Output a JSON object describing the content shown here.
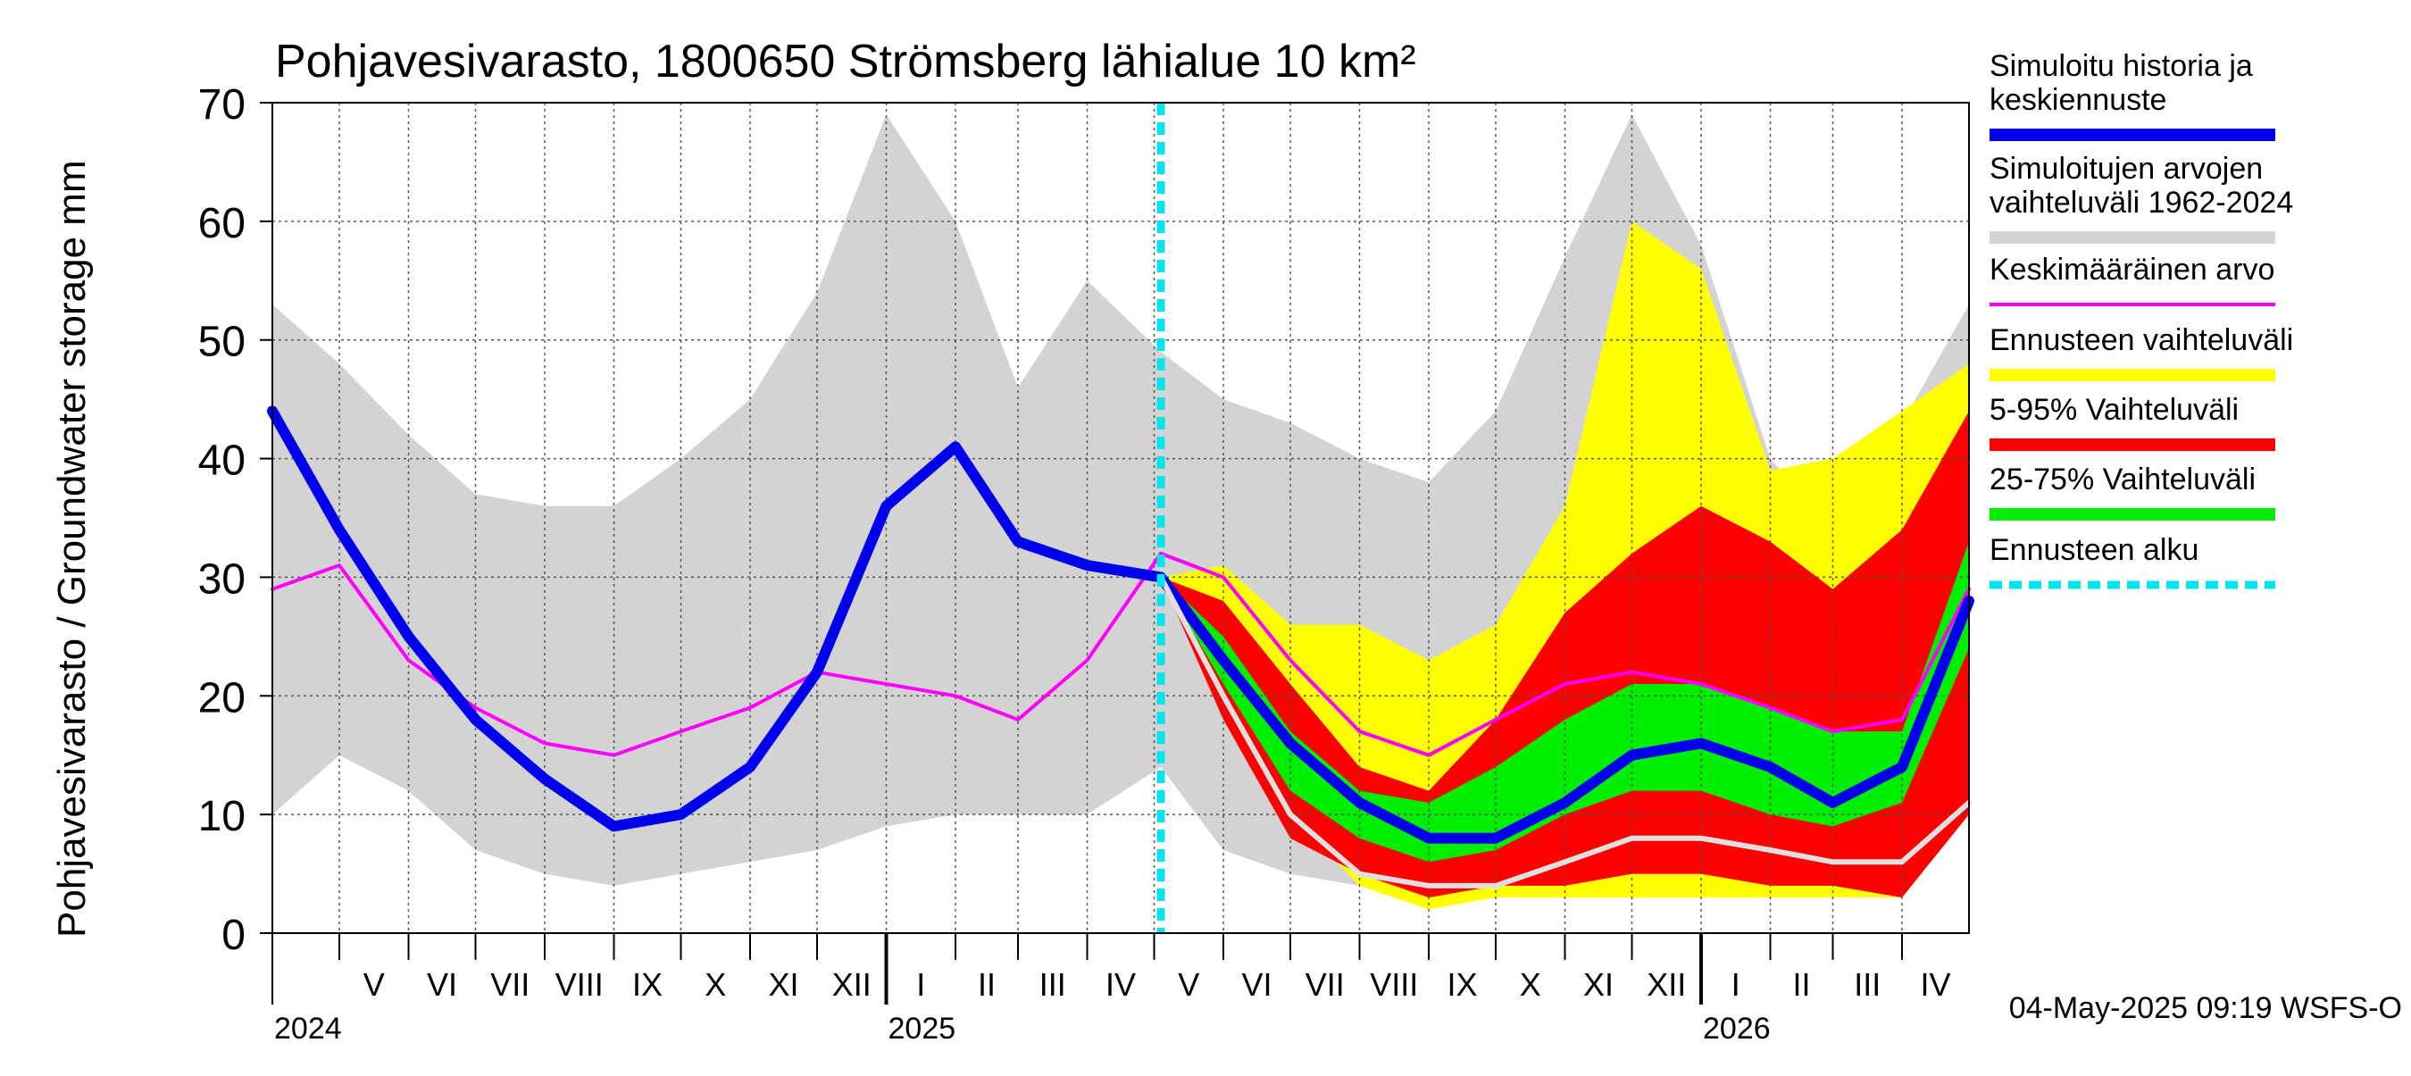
{
  "chart_data": {
    "type": "area",
    "title": "Pohjavesivarasto, 1800650 Strömsberg lähialue 10 km²",
    "ylabel": "Pohjavesivarasto / Groundwater storage   mm",
    "ylim": [
      0,
      70
    ],
    "y_ticks": [
      0,
      10,
      20,
      30,
      40,
      50,
      60,
      70
    ],
    "grid": true,
    "legend_position": "right",
    "timestamp": "04-May-2025 09:19 WSFS-O",
    "x_start": "2024-04-01",
    "x_end": "2026-05-01",
    "forecast_start": "2025-05-04",
    "months": [
      {
        "label": "V",
        "date": "2024-05-01"
      },
      {
        "label": "VI",
        "date": "2024-06-01"
      },
      {
        "label": "VII",
        "date": "2024-07-01"
      },
      {
        "label": "VIII",
        "date": "2024-08-01"
      },
      {
        "label": "IX",
        "date": "2024-09-01"
      },
      {
        "label": "X",
        "date": "2024-10-01"
      },
      {
        "label": "XI",
        "date": "2024-11-01"
      },
      {
        "label": "XII",
        "date": "2024-12-01"
      },
      {
        "label": "I",
        "date": "2025-01-01"
      },
      {
        "label": "II",
        "date": "2025-02-01"
      },
      {
        "label": "III",
        "date": "2025-03-01"
      },
      {
        "label": "IV",
        "date": "2025-04-01"
      },
      {
        "label": "V",
        "date": "2025-05-01"
      },
      {
        "label": "VI",
        "date": "2025-06-01"
      },
      {
        "label": "VII",
        "date": "2025-07-01"
      },
      {
        "label": "VIII",
        "date": "2025-08-01"
      },
      {
        "label": "IX",
        "date": "2025-09-01"
      },
      {
        "label": "X",
        "date": "2025-10-01"
      },
      {
        "label": "XI",
        "date": "2025-11-01"
      },
      {
        "label": "XII",
        "date": "2025-12-01"
      },
      {
        "label": "I",
        "date": "2026-01-01"
      },
      {
        "label": "II",
        "date": "2026-02-01"
      },
      {
        "label": "III",
        "date": "2026-03-01"
      },
      {
        "label": "IV",
        "date": "2026-04-01"
      }
    ],
    "years": [
      {
        "label": "2024",
        "date": "2024-04-01"
      },
      {
        "label": "2025",
        "date": "2025-01-01"
      },
      {
        "label": "2026",
        "date": "2026-01-01"
      }
    ],
    "x": [
      "2024-04-01",
      "2024-05-01",
      "2024-06-01",
      "2024-07-01",
      "2024-08-01",
      "2024-09-01",
      "2024-10-01",
      "2024-11-01",
      "2024-12-01",
      "2025-01-01",
      "2025-02-01",
      "2025-03-01",
      "2025-04-01",
      "2025-05-04",
      "2025-06-01",
      "2025-07-01",
      "2025-08-01",
      "2025-09-01",
      "2025-10-01",
      "2025-11-01",
      "2025-12-01",
      "2026-01-01",
      "2026-02-01",
      "2026-03-01",
      "2026-04-01",
      "2026-05-01"
    ],
    "series": [
      {
        "name": "Simuloitujen arvojen vaihteluväli 1962-2024",
        "kind": "band",
        "color": "#d3d3d3",
        "low": [
          10,
          15,
          12,
          7,
          5,
          4,
          5,
          6,
          7,
          9,
          10,
          10,
          10,
          14,
          7,
          5,
          4,
          4,
          5,
          7,
          8,
          8,
          7,
          6,
          6,
          12
        ],
        "high": [
          53,
          48,
          42,
          37,
          36,
          36,
          40,
          45,
          54,
          69,
          60,
          46,
          55,
          49,
          45,
          43,
          40,
          38,
          44,
          57,
          69,
          58,
          40,
          34,
          43,
          53
        ]
      },
      {
        "name": "Ennusteen vaihteluväli",
        "kind": "band",
        "color": "#ffff00",
        "low": [
          null,
          null,
          null,
          null,
          null,
          null,
          null,
          null,
          null,
          null,
          null,
          null,
          null,
          30,
          20,
          10,
          4,
          2,
          3,
          3,
          3,
          3,
          3,
          3,
          3,
          11
        ],
        "high": [
          null,
          null,
          null,
          null,
          null,
          null,
          null,
          null,
          null,
          null,
          null,
          null,
          null,
          30,
          31,
          26,
          26,
          23,
          26,
          36,
          60,
          56,
          39,
          40,
          44,
          48
        ]
      },
      {
        "name": "5-95% Vaihteluväli",
        "kind": "band",
        "color": "#ff0000",
        "low": [
          null,
          null,
          null,
          null,
          null,
          null,
          null,
          null,
          null,
          null,
          null,
          null,
          null,
          30,
          18,
          8,
          5,
          3,
          4,
          4,
          5,
          5,
          4,
          4,
          3,
          10
        ],
        "high": [
          null,
          null,
          null,
          null,
          null,
          null,
          null,
          null,
          null,
          null,
          null,
          null,
          null,
          30,
          28,
          21,
          14,
          12,
          18,
          27,
          32,
          36,
          33,
          29,
          34,
          44
        ]
      },
      {
        "name": "25-75% Vaihteluväli",
        "kind": "band",
        "color": "#00ee00",
        "low": [
          null,
          null,
          null,
          null,
          null,
          null,
          null,
          null,
          null,
          null,
          null,
          null,
          null,
          30,
          21,
          12,
          8,
          6,
          7,
          10,
          12,
          12,
          10,
          9,
          11,
          24
        ],
        "high": [
          null,
          null,
          null,
          null,
          null,
          null,
          null,
          null,
          null,
          null,
          null,
          null,
          null,
          30,
          25,
          17,
          12,
          11,
          14,
          18,
          21,
          21,
          19,
          17,
          17,
          33
        ]
      },
      {
        "name": "Keskimääräinen arvo",
        "kind": "line",
        "color": "#ff00ff",
        "values": [
          29,
          31,
          23,
          19,
          16,
          15,
          17,
          19,
          22,
          21,
          20,
          18,
          23,
          32,
          30,
          23,
          17,
          15,
          18,
          21,
          22,
          21,
          19,
          17,
          18,
          29
        ]
      },
      {
        "name": "Simuloitu historia ja keskiennuste",
        "kind": "line",
        "color": "#0000ee",
        "values": [
          44,
          34,
          25,
          18,
          13,
          9,
          10,
          14,
          22,
          36,
          41,
          33,
          31,
          30,
          23,
          16,
          11,
          8,
          8,
          11,
          15,
          16,
          14,
          11,
          14,
          28
        ]
      },
      {
        "name": "",
        "kind": "line",
        "color": "#e0e0e0",
        "values": [
          null,
          null,
          null,
          null,
          null,
          null,
          null,
          null,
          null,
          null,
          null,
          null,
          null,
          30,
          20,
          10,
          5,
          4,
          4,
          6,
          8,
          8,
          7,
          6,
          6,
          11
        ]
      }
    ],
    "legend": [
      {
        "label": "Simuloitu historia ja keskiennuste",
        "color": "#0000ee",
        "style": "solid"
      },
      {
        "label": "Simuloitujen arvojen vaihteluväli 1962-2024",
        "color": "#d3d3d3",
        "style": "solid"
      },
      {
        "label": "Keskimääräinen arvo",
        "color": "#ff00ff",
        "style": "thin"
      },
      {
        "label": "Ennusteen vaihteluväli",
        "color": "#ffff00",
        "style": "solid"
      },
      {
        "label": "5-95% Vaihteluväli",
        "color": "#ff0000",
        "style": "solid"
      },
      {
        "label": "25-75% Vaihteluväli",
        "color": "#00ee00",
        "style": "solid"
      },
      {
        "label": "Ennusteen alku",
        "color": "#00e5ee",
        "style": "dotted"
      }
    ]
  }
}
